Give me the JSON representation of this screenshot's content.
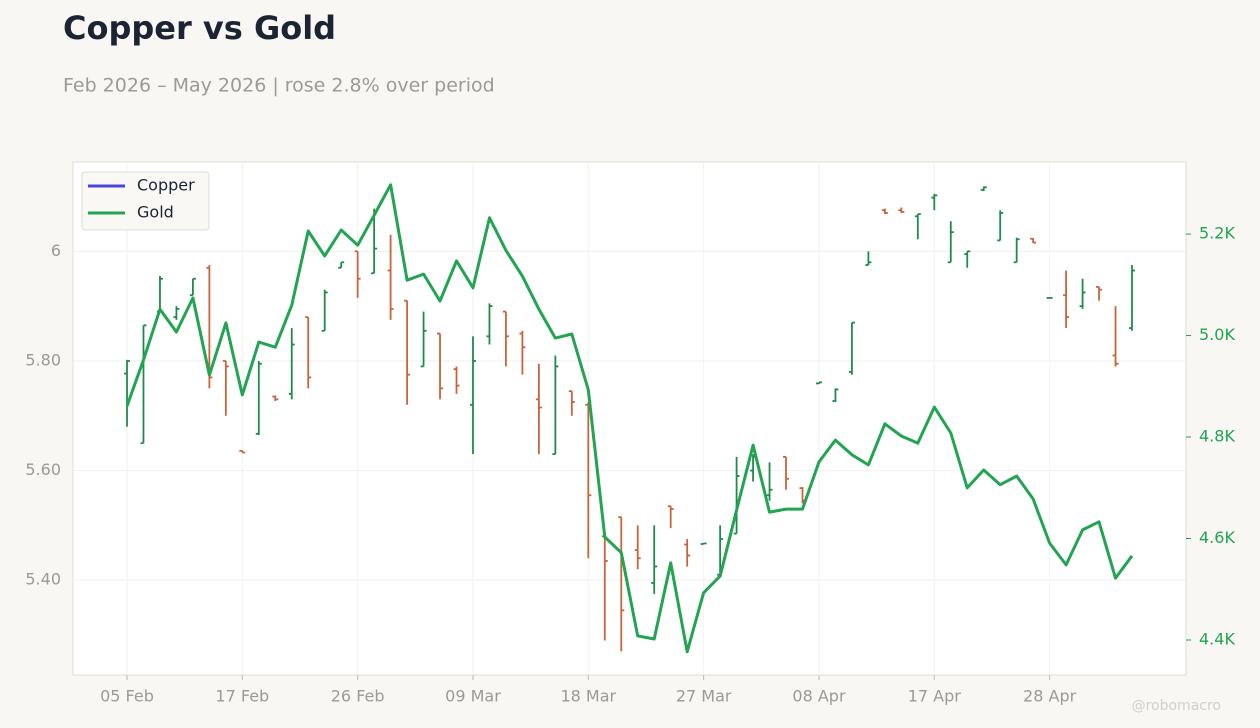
{
  "chart_data": {
    "type": "ohlc_line",
    "title": "Copper vs Gold",
    "subtitle": "Feb 2026 – May 2026 | rose 2.8% over period",
    "watermark": "@robomacro",
    "legend": "upper left",
    "grid": true,
    "categories": [
      "05 Feb",
      null,
      null,
      null,
      null,
      null,
      null,
      "17 Feb",
      null,
      null,
      null,
      null,
      null,
      null,
      "26 Feb",
      null,
      null,
      null,
      null,
      null,
      null,
      "09 Mar",
      null,
      null,
      null,
      null,
      null,
      null,
      "18 Mar",
      null,
      null,
      null,
      null,
      null,
      null,
      "27 Mar",
      null,
      null,
      null,
      null,
      null,
      null,
      "08 Apr",
      null,
      null,
      null,
      null,
      null,
      null,
      "17 Apr",
      null,
      null,
      null,
      null,
      null,
      null,
      "28 Apr",
      null,
      null,
      null,
      null,
      null
    ],
    "ylim": [
      5.227,
      6.163
    ],
    "yticks": [
      {
        "value": 5.4,
        "label": "5.40"
      },
      {
        "value": 5.6,
        "label": "5.60"
      },
      {
        "value": 5.8,
        "label": "5.80"
      },
      6
    ],
    "y2lim": [
      4331,
      5342
    ],
    "y2ticks": [
      {
        "value": 4400,
        "label": "4.4K"
      },
      {
        "value": 4600,
        "label": "4.6K"
      },
      {
        "value": 4800,
        "label": "4.8K"
      },
      {
        "value": 5000,
        "label": "5.0K"
      },
      {
        "value": 5200,
        "label": "5.2K"
      }
    ],
    "series": [
      {
        "name": "Copper",
        "type": "ohlc",
        "color": "#4b44dc",
        "up_color": "#1f8a4c",
        "down_color": "#c8643c",
        "open": [
          5.777,
          5.65,
          5.89,
          5.88,
          5.92,
          5.97,
          5.8,
          5.636,
          5.667,
          5.735,
          5.74,
          5.88,
          5.855,
          5.97,
          6.0,
          5.96,
          5.965,
          5.91,
          5.79,
          5.85,
          5.785,
          5.72,
          5.845,
          5.89,
          5.85,
          5.73,
          5.63,
          5.745,
          5.72,
          5.48,
          5.515,
          5.455,
          5.395,
          5.535,
          5.465,
          5.466,
          5.41,
          5.485,
          5.6,
          5.555,
          5.625,
          5.568,
          5.759,
          5.727,
          5.78,
          5.975,
          6.075,
          6.075,
          6.064,
          6.098,
          5.98,
          5.995,
          6.112,
          6.02,
          5.98,
          6.023,
          5.915,
          5.92,
          5.9,
          5.935,
          5.81,
          5.86
        ],
        "high": [
          5.802,
          5.865,
          5.955,
          5.9,
          5.95,
          5.975,
          5.8,
          5.637,
          5.8,
          5.737,
          5.86,
          5.88,
          5.93,
          5.98,
          6.0,
          6.078,
          6.03,
          5.91,
          5.89,
          5.85,
          5.79,
          5.845,
          5.905,
          5.89,
          5.855,
          5.795,
          5.81,
          5.745,
          5.725,
          5.48,
          5.515,
          5.5,
          5.5,
          5.535,
          5.475,
          5.468,
          5.5,
          5.625,
          5.63,
          5.615,
          5.625,
          5.57,
          5.761,
          5.75,
          5.87,
          6.0,
          6.078,
          6.08,
          6.068,
          6.105,
          6.055,
          6.0,
          6.118,
          6.075,
          6.025,
          6.024,
          5.916,
          5.965,
          5.95,
          5.935,
          5.9,
          5.975
        ],
        "low": [
          5.68,
          5.65,
          5.89,
          5.875,
          5.92,
          5.75,
          5.7,
          5.633,
          5.665,
          5.727,
          5.73,
          5.75,
          5.855,
          5.97,
          5.915,
          5.96,
          5.875,
          5.72,
          5.79,
          5.73,
          5.74,
          5.63,
          5.83,
          5.79,
          5.775,
          5.63,
          5.63,
          5.7,
          5.44,
          5.29,
          5.27,
          5.42,
          5.375,
          5.495,
          5.425,
          5.466,
          5.41,
          5.485,
          5.58,
          5.545,
          5.565,
          5.54,
          5.758,
          5.725,
          5.775,
          5.975,
          6.068,
          6.07,
          6.022,
          6.075,
          5.98,
          5.97,
          6.11,
          6.02,
          5.98,
          6.015,
          5.914,
          5.86,
          5.895,
          5.91,
          5.79,
          5.855
        ],
        "close": [
          5.8,
          5.865,
          5.95,
          5.895,
          5.95,
          5.77,
          5.79,
          5.633,
          5.795,
          5.73,
          5.83,
          5.77,
          5.925,
          5.98,
          5.95,
          6.005,
          5.895,
          5.775,
          5.855,
          5.75,
          5.755,
          5.8,
          5.9,
          5.845,
          5.825,
          5.715,
          5.79,
          5.725,
          5.555,
          5.435,
          5.345,
          5.44,
          5.425,
          5.53,
          5.445,
          5.467,
          5.475,
          5.59,
          5.625,
          5.565,
          5.585,
          5.545,
          5.761,
          5.748,
          5.87,
          5.98,
          6.07,
          6.072,
          6.068,
          6.102,
          6.035,
          6.0,
          6.117,
          6.07,
          6.022,
          6.016,
          5.915,
          5.88,
          5.925,
          5.93,
          5.795,
          5.965
        ]
      },
      {
        "name": "Gold",
        "type": "line",
        "axis": "y2",
        "color": "#22a452",
        "values": [
          4861,
          4952,
          5052,
          5007,
          5074,
          4922,
          5025,
          4883,
          4987,
          4977,
          5060,
          5206,
          5157,
          5208,
          5178,
          5237,
          5297,
          5109,
          5121,
          5068,
          5147,
          5094,
          5232,
          5168,
          5117,
          5052,
          4995,
          5003,
          4893,
          4603,
          4572,
          4408,
          4402,
          4552,
          4377,
          4493,
          4526,
          4656,
          4784,
          4652,
          4658,
          4658,
          4751,
          4794,
          4765,
          4745,
          4826,
          4802,
          4788,
          4859,
          4808,
          4700,
          4735,
          4706,
          4723,
          4678,
          4591,
          4548,
          4617,
          4633,
          4522,
          4566
        ]
      }
    ]
  }
}
